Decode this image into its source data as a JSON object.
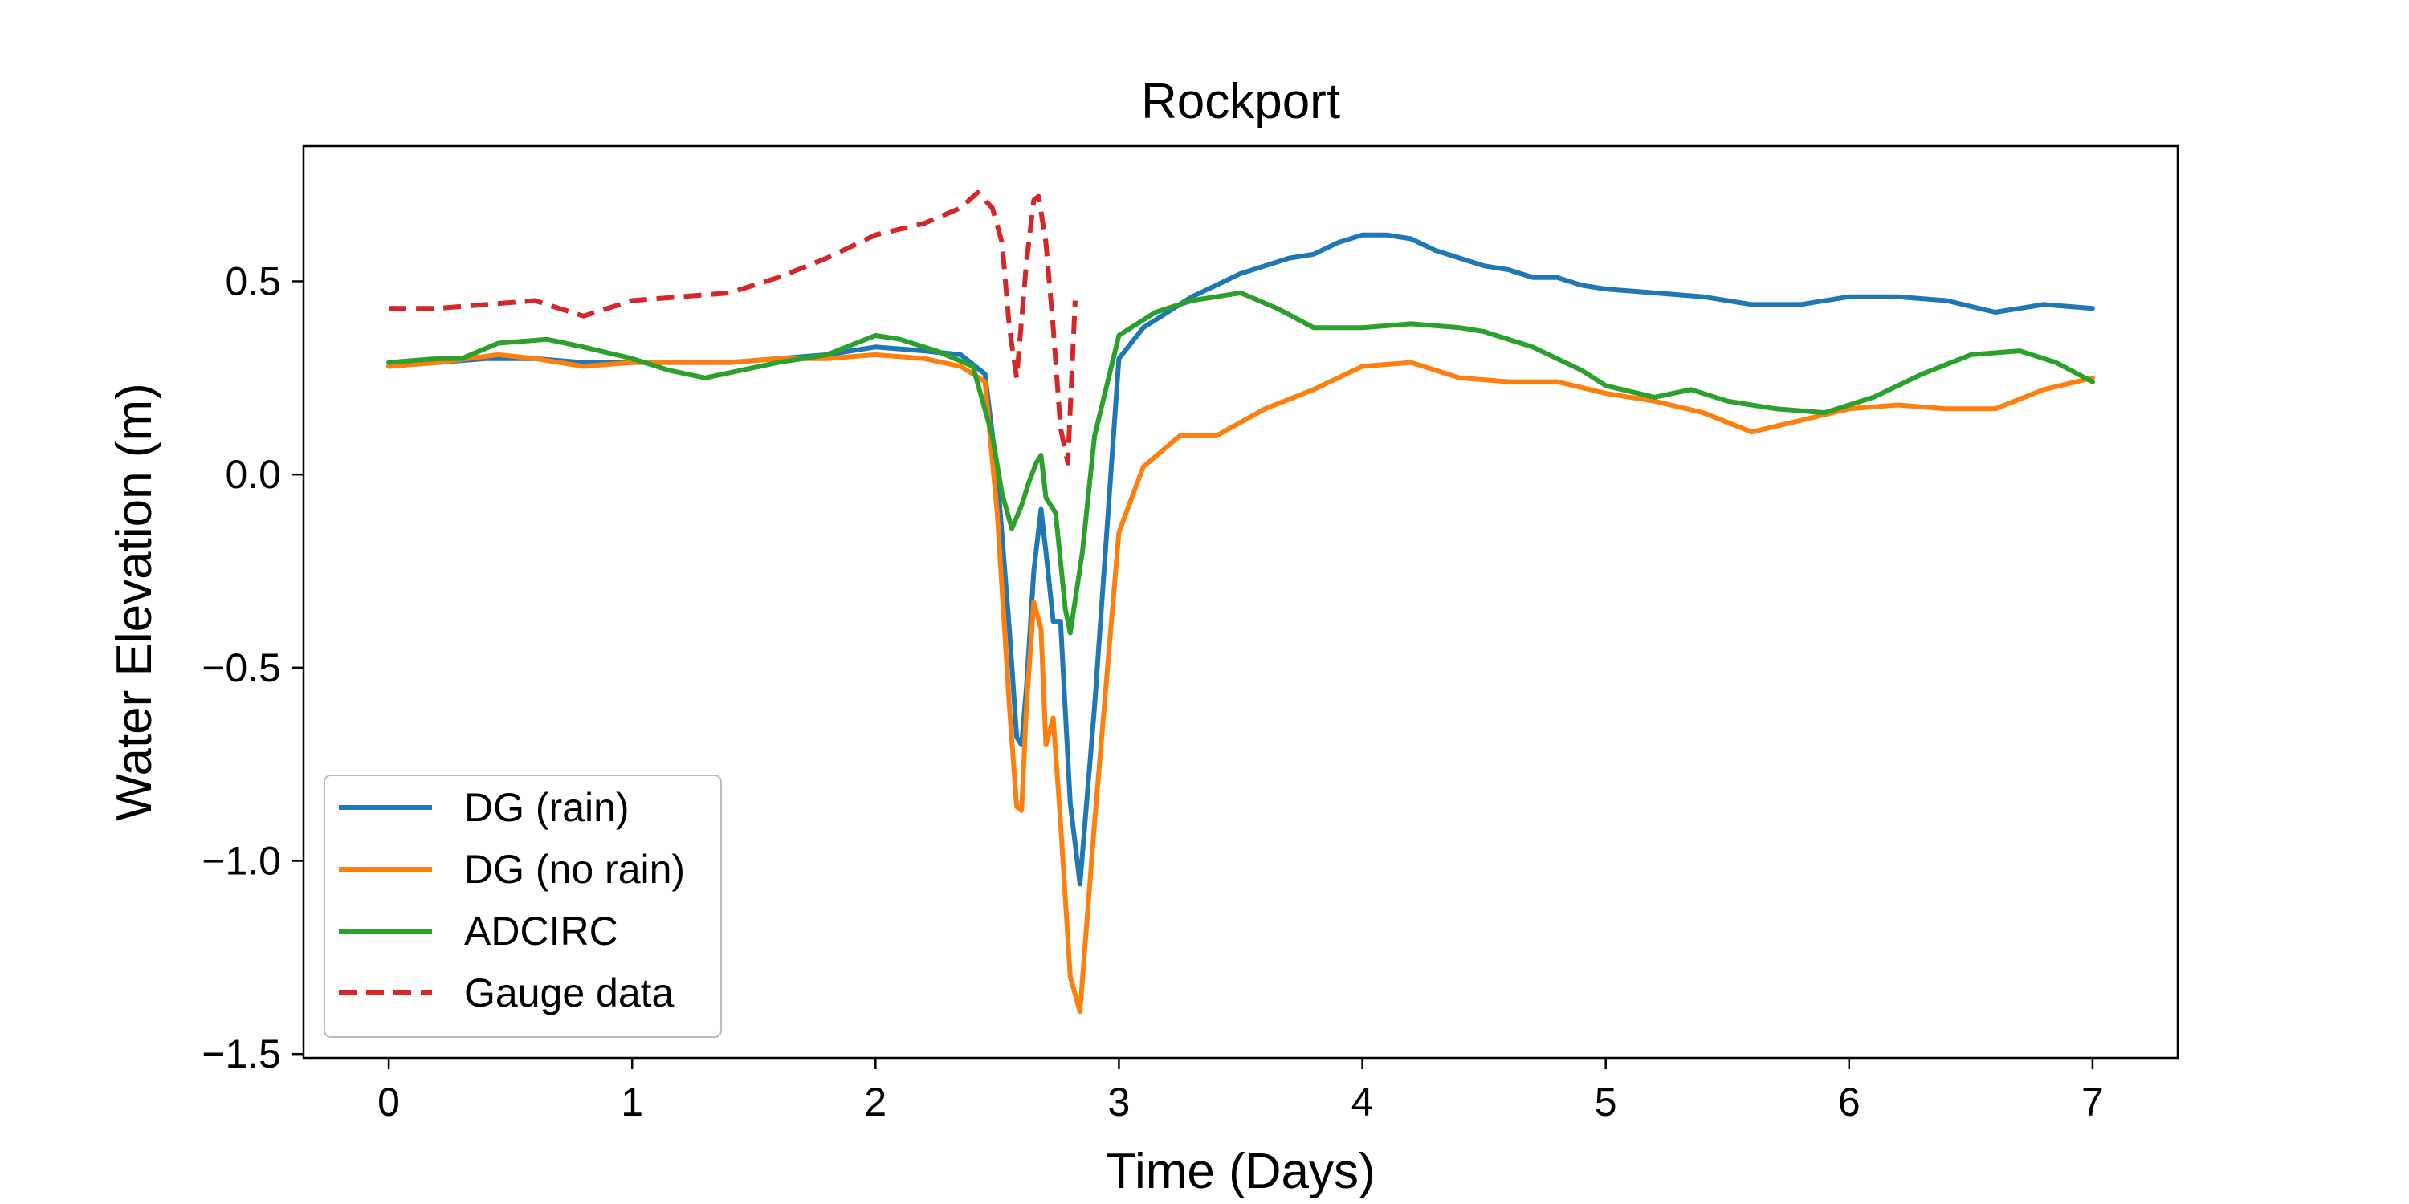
{
  "chart_data": {
    "type": "line",
    "title": "Rockport",
    "xlabel": "Time (Days)",
    "ylabel": "Water Elevation (m)",
    "xlim": [
      -0.35,
      7.35
    ],
    "ylim": [
      -1.51,
      0.85
    ],
    "xticks": [
      {
        "value": 0,
        "label": "0"
      },
      {
        "value": 1,
        "label": "1"
      },
      {
        "value": 2,
        "label": "2"
      },
      {
        "value": 3,
        "label": "3"
      },
      {
        "value": 4,
        "label": "4"
      },
      {
        "value": 5,
        "label": "5"
      },
      {
        "value": 6,
        "label": "6"
      },
      {
        "value": 7,
        "label": "7"
      }
    ],
    "yticks": [
      {
        "value": 0.5,
        "label": "0.5"
      },
      {
        "value": 0.0,
        "label": "0.0"
      },
      {
        "value": -0.5,
        "label": "−0.5"
      },
      {
        "value": -1.0,
        "label": "−1.0"
      },
      {
        "value": -1.5,
        "label": "−1.5"
      }
    ],
    "grid": false,
    "legend_position": "lower-left",
    "series": [
      {
        "name": "DG (rain)",
        "color": "#1f77b4",
        "dash": "solid",
        "x": [
          0,
          0.2,
          0.4,
          0.6,
          0.8,
          1.0,
          1.2,
          1.4,
          1.6,
          1.8,
          2.0,
          2.2,
          2.35,
          2.45,
          2.5,
          2.55,
          2.58,
          2.6,
          2.62,
          2.65,
          2.68,
          2.7,
          2.73,
          2.76,
          2.8,
          2.84,
          2.9,
          3.0,
          3.1,
          3.2,
          3.3,
          3.4,
          3.5,
          3.6,
          3.7,
          3.8,
          3.9,
          4.0,
          4.1,
          4.2,
          4.3,
          4.4,
          4.5,
          4.6,
          4.7,
          4.8,
          4.9,
          5.0,
          5.2,
          5.4,
          5.6,
          5.8,
          6.0,
          6.2,
          6.4,
          6.6,
          6.8,
          7.0
        ],
        "y": [
          0.28,
          0.29,
          0.3,
          0.3,
          0.29,
          0.29,
          0.29,
          0.29,
          0.3,
          0.31,
          0.33,
          0.32,
          0.31,
          0.26,
          0.0,
          -0.4,
          -0.68,
          -0.7,
          -0.55,
          -0.25,
          -0.09,
          -0.2,
          -0.38,
          -0.38,
          -0.85,
          -1.06,
          -0.6,
          0.3,
          0.38,
          0.42,
          0.46,
          0.49,
          0.52,
          0.54,
          0.56,
          0.57,
          0.6,
          0.62,
          0.62,
          0.61,
          0.58,
          0.56,
          0.54,
          0.53,
          0.51,
          0.51,
          0.49,
          0.48,
          0.47,
          0.46,
          0.44,
          0.44,
          0.46,
          0.46,
          0.45,
          0.42,
          0.44,
          0.43
        ]
      },
      {
        "name": "DG (no rain)",
        "color": "#ff7f0e",
        "dash": "solid",
        "x": [
          0,
          0.2,
          0.45,
          0.6,
          0.8,
          1.0,
          1.2,
          1.4,
          1.6,
          1.8,
          2.0,
          2.2,
          2.35,
          2.45,
          2.5,
          2.55,
          2.58,
          2.6,
          2.62,
          2.65,
          2.68,
          2.7,
          2.73,
          2.76,
          2.8,
          2.84,
          2.9,
          3.0,
          3.1,
          3.25,
          3.4,
          3.6,
          3.8,
          4.0,
          4.2,
          4.4,
          4.6,
          4.8,
          5.0,
          5.2,
          5.4,
          5.6,
          5.8,
          6.0,
          6.2,
          6.4,
          6.6,
          6.8,
          7.0
        ],
        "y": [
          0.28,
          0.29,
          0.31,
          0.3,
          0.28,
          0.29,
          0.29,
          0.29,
          0.3,
          0.3,
          0.31,
          0.3,
          0.28,
          0.24,
          -0.1,
          -0.6,
          -0.86,
          -0.87,
          -0.6,
          -0.33,
          -0.4,
          -0.7,
          -0.63,
          -0.9,
          -1.3,
          -1.39,
          -0.9,
          -0.15,
          0.02,
          0.1,
          0.1,
          0.17,
          0.22,
          0.28,
          0.29,
          0.25,
          0.24,
          0.24,
          0.21,
          0.19,
          0.16,
          0.11,
          0.14,
          0.17,
          0.18,
          0.17,
          0.17,
          0.22,
          0.25
        ]
      },
      {
        "name": "ADCIRC",
        "color": "#2ca02c",
        "dash": "solid",
        "x": [
          0,
          0.2,
          0.3,
          0.45,
          0.65,
          0.8,
          1.0,
          1.15,
          1.3,
          1.45,
          1.6,
          1.8,
          2.0,
          2.1,
          2.25,
          2.4,
          2.48,
          2.52,
          2.56,
          2.6,
          2.63,
          2.66,
          2.68,
          2.7,
          2.74,
          2.78,
          2.8,
          2.85,
          2.9,
          3.0,
          3.15,
          3.3,
          3.5,
          3.65,
          3.8,
          4.0,
          4.2,
          4.4,
          4.5,
          4.7,
          4.9,
          5.0,
          5.2,
          5.35,
          5.5,
          5.7,
          5.9,
          6.1,
          6.3,
          6.5,
          6.7,
          6.85,
          7.0
        ],
        "y": [
          0.29,
          0.3,
          0.3,
          0.34,
          0.35,
          0.33,
          0.3,
          0.27,
          0.25,
          0.27,
          0.29,
          0.31,
          0.36,
          0.35,
          0.32,
          0.28,
          0.1,
          -0.05,
          -0.14,
          -0.08,
          -0.02,
          0.03,
          0.05,
          -0.06,
          -0.1,
          -0.35,
          -0.41,
          -0.2,
          0.1,
          0.36,
          0.42,
          0.45,
          0.47,
          0.43,
          0.38,
          0.38,
          0.39,
          0.38,
          0.37,
          0.33,
          0.27,
          0.23,
          0.2,
          0.22,
          0.19,
          0.17,
          0.16,
          0.2,
          0.26,
          0.31,
          0.32,
          0.29,
          0.24
        ]
      },
      {
        "name": "Gauge data",
        "color": "#d62728",
        "dash": "dashed",
        "x": [
          0,
          0.2,
          0.4,
          0.6,
          0.8,
          1.0,
          1.2,
          1.4,
          1.6,
          1.8,
          2.0,
          2.2,
          2.35,
          2.42,
          2.48,
          2.52,
          2.55,
          2.58,
          2.62,
          2.65,
          2.67,
          2.7,
          2.73,
          2.76,
          2.79,
          2.82
        ],
        "y": [
          0.43,
          0.43,
          0.44,
          0.45,
          0.41,
          0.45,
          0.46,
          0.47,
          0.51,
          0.56,
          0.62,
          0.65,
          0.69,
          0.73,
          0.69,
          0.6,
          0.38,
          0.25,
          0.55,
          0.71,
          0.72,
          0.6,
          0.38,
          0.12,
          0.03,
          0.45
        ]
      }
    ]
  }
}
